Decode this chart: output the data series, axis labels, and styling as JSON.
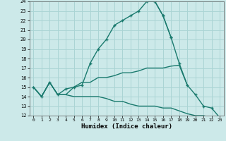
{
  "xlabel": "Humidex (Indice chaleur)",
  "xlim": [
    -0.5,
    23.5
  ],
  "ylim": [
    12,
    24
  ],
  "xticks": [
    0,
    1,
    2,
    3,
    4,
    5,
    6,
    7,
    8,
    9,
    10,
    11,
    12,
    13,
    14,
    15,
    16,
    17,
    18,
    19,
    20,
    21,
    22,
    23
  ],
  "yticks": [
    12,
    13,
    14,
    15,
    16,
    17,
    18,
    19,
    20,
    21,
    22,
    23,
    24
  ],
  "bg_color": "#cce9e9",
  "grid_color": "#aad4d4",
  "line_color": "#1a7a6e",
  "s0_x": [
    0,
    1,
    2,
    3,
    4,
    5,
    6,
    7,
    8,
    9,
    10,
    11,
    12,
    13,
    14,
    15,
    16,
    17
  ],
  "s0_y": [
    15.0,
    14.0,
    15.5,
    14.2,
    14.8,
    15.0,
    15.2,
    17.5,
    19.0,
    20.0,
    21.5,
    22.0,
    22.5,
    23.0,
    24.0,
    24.0,
    22.5,
    20.2
  ],
  "s3_x": [
    15,
    16,
    17,
    18,
    19,
    20,
    21,
    22,
    23
  ],
  "s3_y": [
    24.0,
    22.5,
    20.2,
    17.5,
    15.2,
    14.2,
    13.0,
    12.8,
    11.8
  ],
  "s1_x": [
    0,
    1,
    2,
    3,
    4,
    5,
    6,
    7,
    8,
    9,
    10,
    11,
    12,
    13,
    14,
    15,
    16,
    17,
    18,
    19
  ],
  "s1_y": [
    15.0,
    14.0,
    15.5,
    14.2,
    14.2,
    15.0,
    15.5,
    15.5,
    16.0,
    16.0,
    16.2,
    16.5,
    16.5,
    16.7,
    17.0,
    17.0,
    17.0,
    17.2,
    17.3,
    15.2
  ],
  "s2_x": [
    0,
    1,
    2,
    3,
    4,
    5,
    6,
    7,
    8,
    9,
    10,
    11,
    12,
    13,
    14,
    15,
    16,
    17,
    18,
    19,
    20,
    21,
    22,
    23
  ],
  "s2_y": [
    15.0,
    14.0,
    15.5,
    14.2,
    14.2,
    14.0,
    14.0,
    14.0,
    14.0,
    13.8,
    13.5,
    13.5,
    13.2,
    13.0,
    13.0,
    13.0,
    12.8,
    12.8,
    12.5,
    12.2,
    12.0,
    12.0,
    11.8,
    11.7
  ]
}
